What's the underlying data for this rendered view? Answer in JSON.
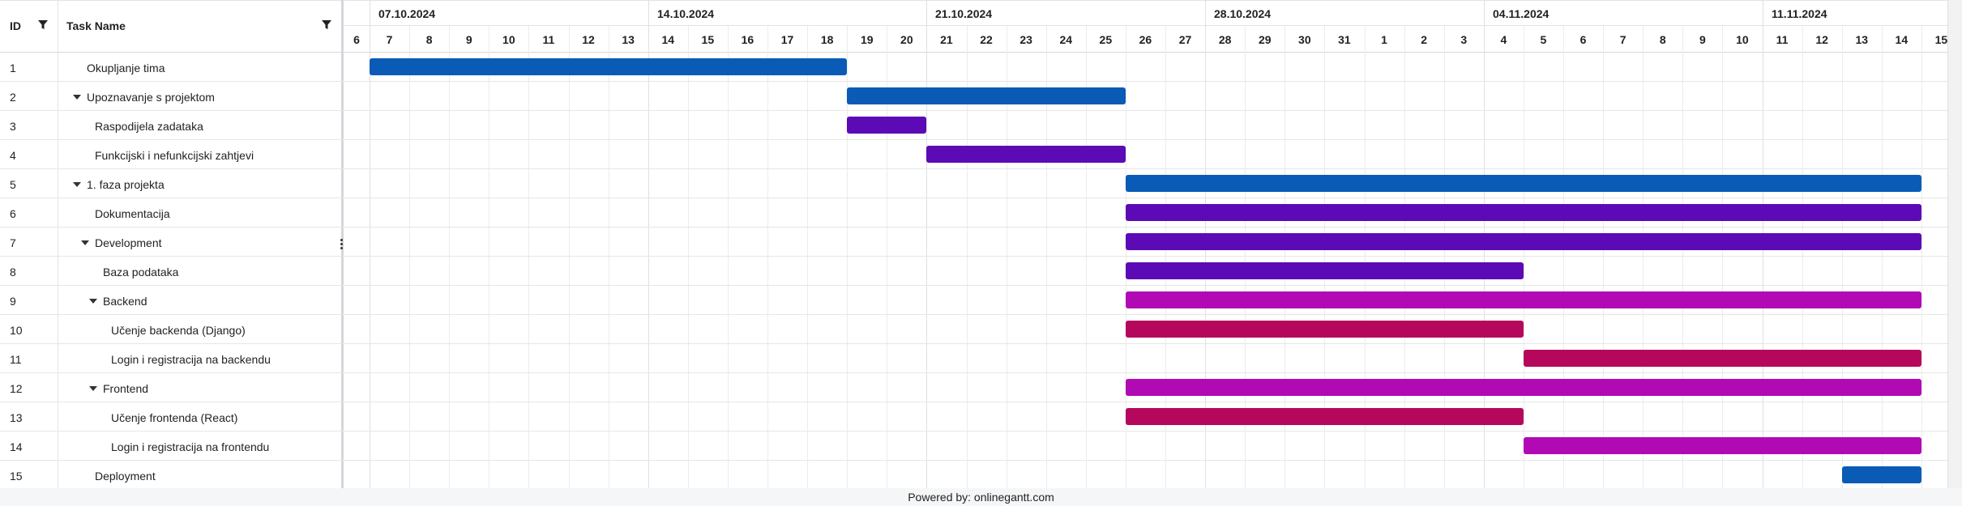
{
  "columns": {
    "id": "ID",
    "task_name": "Task Name"
  },
  "weeks": [
    "07.10.2024",
    "14.10.2024",
    "21.10.2024",
    "28.10.2024",
    "04.11.2024",
    "11.11.2024"
  ],
  "days": [
    "6",
    "7",
    "8",
    "9",
    "10",
    "11",
    "12",
    "13",
    "14",
    "15",
    "16",
    "17",
    "18",
    "19",
    "20",
    "21",
    "22",
    "23",
    "24",
    "25",
    "26",
    "27",
    "28",
    "29",
    "30",
    "31",
    "1",
    "2",
    "3",
    "4",
    "5",
    "6",
    "7",
    "8",
    "9",
    "10",
    "11",
    "12",
    "13",
    "14",
    "15"
  ],
  "tasks": [
    {
      "id": "1",
      "name": "Okupljanje tima",
      "level": 0,
      "expandable": false,
      "start": "2024-10-07",
      "end": "2024-10-18",
      "color": "#0a5bb6"
    },
    {
      "id": "2",
      "name": "Upoznavanje s projektom",
      "level": 0,
      "expandable": true,
      "start": "2024-10-19",
      "end": "2024-10-25",
      "color": "#0a5bb6"
    },
    {
      "id": "3",
      "name": "Raspodijela zadataka",
      "level": 1,
      "expandable": false,
      "start": "2024-10-19",
      "end": "2024-10-20",
      "color": "#5c0ab5"
    },
    {
      "id": "4",
      "name": "Funkcijski i nefunkcijski zahtjevi",
      "level": 1,
      "expandable": false,
      "start": "2024-10-21",
      "end": "2024-10-25",
      "color": "#5c0ab5"
    },
    {
      "id": "5",
      "name": "1. faza projekta",
      "level": 0,
      "expandable": true,
      "start": "2024-10-26",
      "end": "2024-11-14",
      "color": "#0a5bb6"
    },
    {
      "id": "6",
      "name": "Dokumentacija",
      "level": 1,
      "expandable": false,
      "start": "2024-10-26",
      "end": "2024-11-14",
      "color": "#5c0ab5"
    },
    {
      "id": "7",
      "name": "Development",
      "level": 1,
      "expandable": true,
      "start": "2024-10-26",
      "end": "2024-11-14",
      "color": "#5c0ab5"
    },
    {
      "id": "8",
      "name": "Baza podataka",
      "level": 2,
      "expandable": false,
      "start": "2024-10-26",
      "end": "2024-11-04",
      "color": "#5c0ab5"
    },
    {
      "id": "9",
      "name": "Backend",
      "level": 2,
      "expandable": true,
      "start": "2024-10-26",
      "end": "2024-11-14",
      "color": "#b10ab5"
    },
    {
      "id": "10",
      "name": "Učenje backenda (Django)",
      "level": 3,
      "expandable": false,
      "start": "2024-10-26",
      "end": "2024-11-04",
      "color": "#b5085c"
    },
    {
      "id": "11",
      "name": "Login i registracija na backendu",
      "level": 3,
      "expandable": false,
      "start": "2024-11-05",
      "end": "2024-11-14",
      "color": "#b5085c"
    },
    {
      "id": "12",
      "name": "Frontend",
      "level": 2,
      "expandable": true,
      "start": "2024-10-26",
      "end": "2024-11-14",
      "color": "#b10ab5"
    },
    {
      "id": "13",
      "name": "Učenje frontenda (React)",
      "level": 3,
      "expandable": false,
      "start": "2024-10-26",
      "end": "2024-11-04",
      "color": "#b5085c"
    },
    {
      "id": "14",
      "name": "Login i registracija na frontendu",
      "level": 3,
      "expandable": false,
      "start": "2024-11-05",
      "end": "2024-11-14",
      "color": "#b10ab5"
    },
    {
      "id": "15",
      "name": "Deployment",
      "level": 1,
      "expandable": false,
      "start": "2024-11-13",
      "end": "2024-11-14",
      "color": "#0a5bb6"
    }
  ],
  "footer": {
    "text": "Powered by: onlinegantt.com"
  }
}
